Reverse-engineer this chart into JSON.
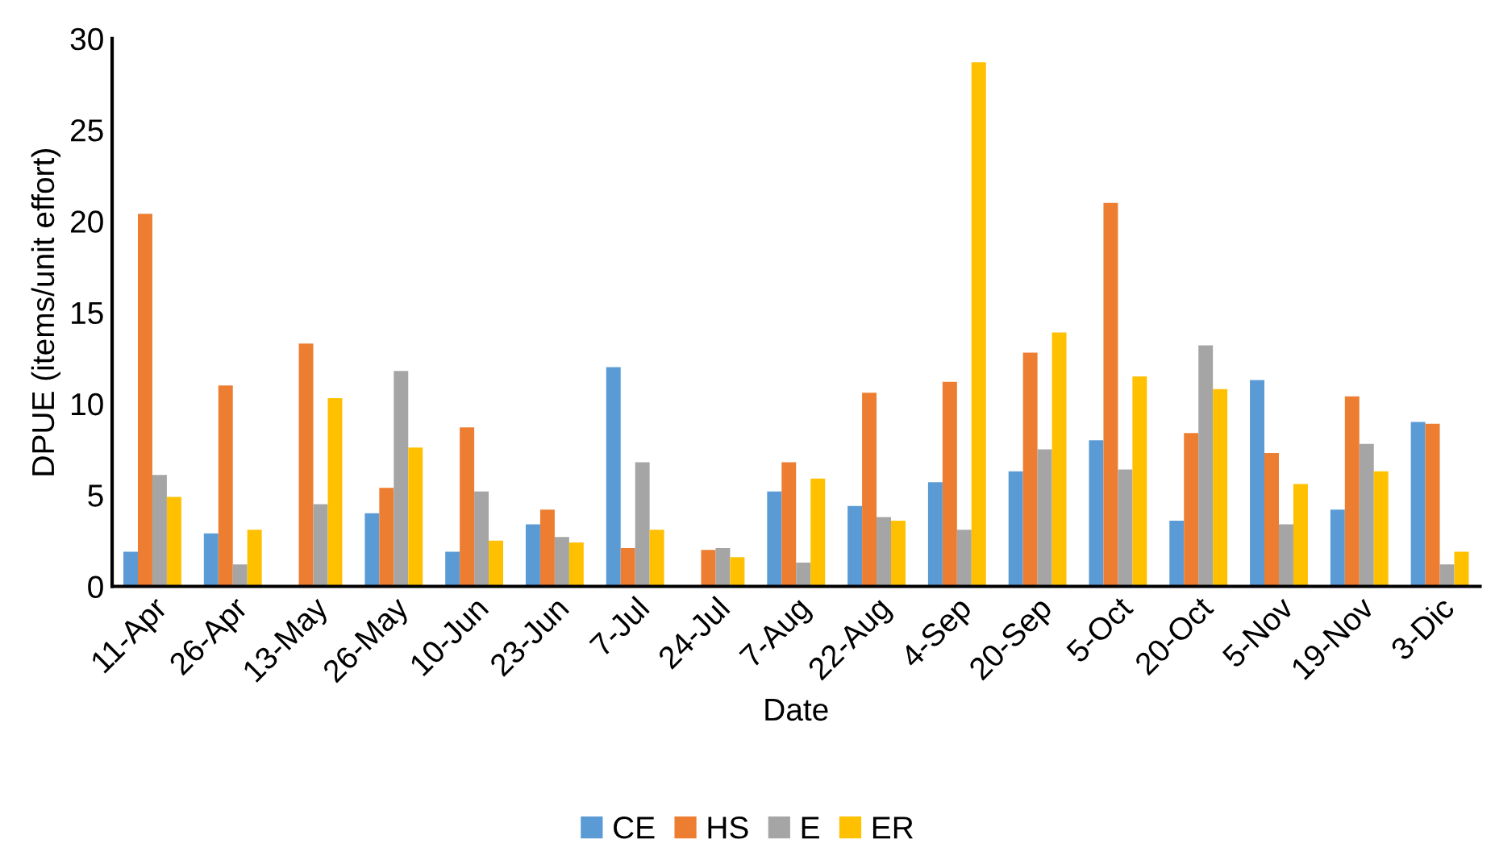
{
  "chart_data": {
    "type": "bar",
    "xlabel": "Date",
    "ylabel": "DPUE (items/unit effort)",
    "categories": [
      "11-Apr",
      "26-Apr",
      "13-May",
      "26-May",
      "10-Jun",
      "23-Jun",
      "7-Jul",
      "24-Jul",
      "7-Aug",
      "22-Aug",
      "4-Sep",
      "20-Sep",
      "5-Oct",
      "20-Oct",
      "5-Nov",
      "19-Nov",
      "3-Dic"
    ],
    "series": [
      {
        "name": "CE",
        "color": "#5b9bd5",
        "values": [
          1.9,
          2.9,
          0,
          4.0,
          1.9,
          3.4,
          12.0,
          0,
          5.2,
          4.4,
          5.7,
          6.3,
          8.0,
          3.6,
          11.3,
          4.2,
          9.0
        ]
      },
      {
        "name": "HS",
        "color": "#ed7d31",
        "values": [
          20.4,
          11.0,
          13.3,
          5.4,
          8.7,
          4.2,
          2.1,
          2.0,
          6.8,
          10.6,
          11.2,
          12.8,
          21.0,
          8.4,
          7.3,
          10.4,
          8.9
        ]
      },
      {
        "name": "E",
        "color": "#a5a5a5",
        "values": [
          6.1,
          1.2,
          4.5,
          11.8,
          5.2,
          2.7,
          6.8,
          2.1,
          1.3,
          3.8,
          3.1,
          7.5,
          6.4,
          13.2,
          3.4,
          7.8,
          1.2
        ]
      },
      {
        "name": "ER",
        "color": "#ffc000",
        "values": [
          4.9,
          3.1,
          10.3,
          7.6,
          2.5,
          2.4,
          3.1,
          1.6,
          5.9,
          3.6,
          28.7,
          13.9,
          11.5,
          10.8,
          5.6,
          6.3,
          1.9
        ]
      }
    ],
    "ylim": [
      0,
      30
    ],
    "yticks": [
      0,
      5,
      10,
      15,
      20,
      25,
      30
    ],
    "grid": false,
    "legend": "bottom"
  }
}
